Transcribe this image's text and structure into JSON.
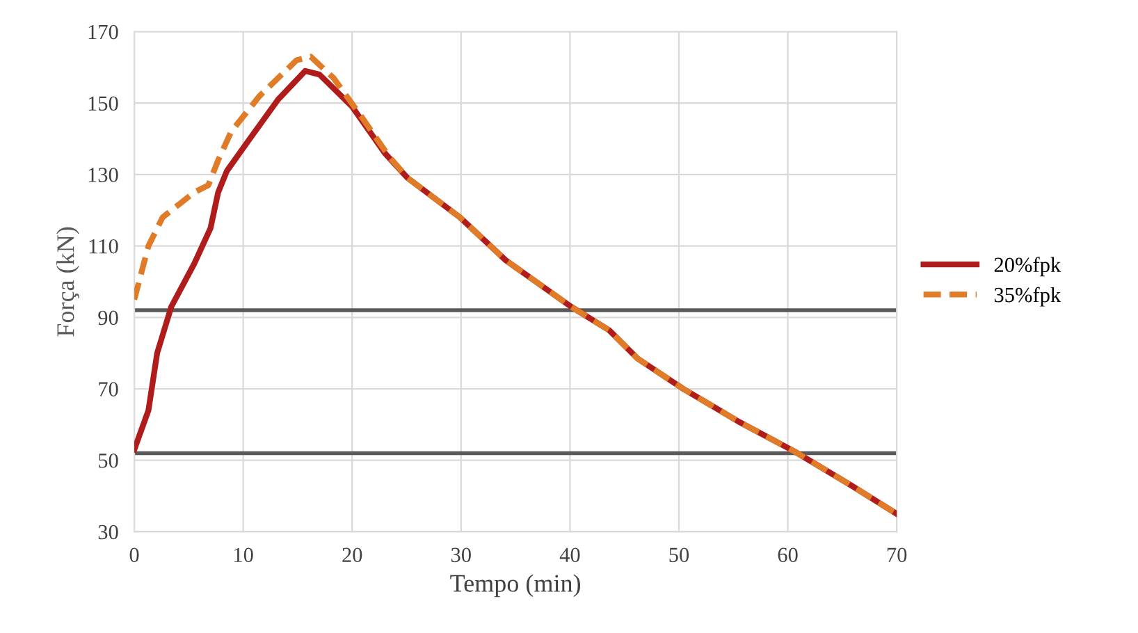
{
  "chart_data": {
    "type": "line",
    "xlabel": "Tempo (min)",
    "ylabel": "Força (kN)",
    "xlim": [
      0,
      70
    ],
    "xticks": [
      0,
      10,
      20,
      30,
      40,
      50,
      60,
      70
    ],
    "ylim": [
      30,
      170
    ],
    "yticks": [
      30,
      50,
      70,
      90,
      110,
      130,
      150,
      170
    ],
    "grid": true,
    "legend": "right",
    "marker": "none",
    "ref_lines": [
      {
        "axis": "y",
        "value": 92,
        "color": "#595959"
      },
      {
        "axis": "y",
        "value": 52,
        "color": "#595959"
      }
    ],
    "series": [
      {
        "name": "20%fpk",
        "color": "#b01c1c",
        "line_style": "solid",
        "x": [
          0,
          1.3,
          2.1,
          3.4,
          5.5,
          7,
          7.7,
          8.5,
          10.6,
          13.2,
          15.7,
          17,
          20,
          23,
          25.1,
          29.9,
          34.1,
          40.1,
          43.6,
          46.2,
          50.4,
          55.5,
          60.6,
          65.8,
          70
        ],
        "values": [
          53,
          64,
          80,
          93,
          105,
          115,
          125,
          131,
          140,
          151,
          159,
          158,
          149,
          136,
          129,
          118,
          106,
          93,
          86.4,
          78.5,
          70,
          60.8,
          52.5,
          43,
          35
        ]
      },
      {
        "name": "35%fpk",
        "color": "#e07b28",
        "line_style": "dashed",
        "x": [
          0,
          1.3,
          2.6,
          5.5,
          6.8,
          7.7,
          8.9,
          11.5,
          14.9,
          16.2,
          18.3,
          20.9,
          23.4,
          25.1,
          29.9,
          34.1,
          40.1,
          43.6,
          46.2,
          50.4,
          55.5,
          60.6,
          65.8,
          70
        ],
        "values": [
          95,
          110,
          118,
          125,
          127,
          134,
          142,
          152,
          162,
          163,
          157,
          146,
          135,
          129,
          118,
          106,
          93,
          86.4,
          78.5,
          70,
          60.8,
          52.5,
          43,
          35
        ]
      }
    ]
  }
}
